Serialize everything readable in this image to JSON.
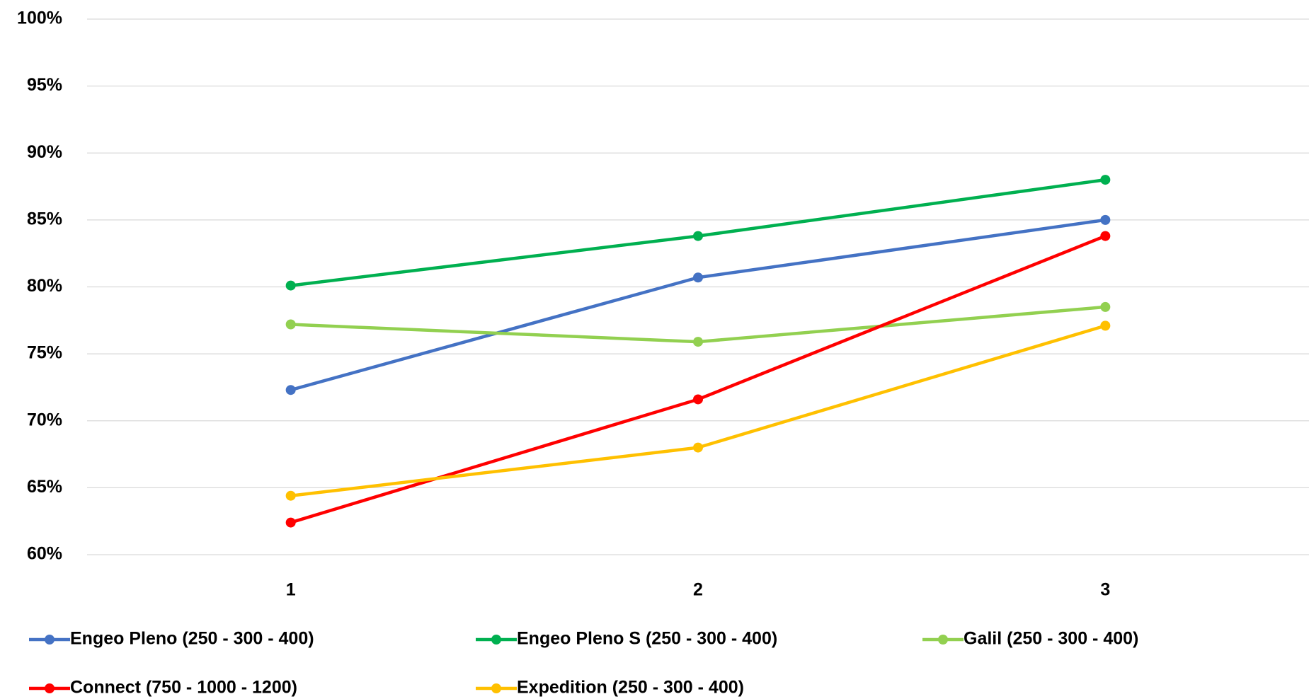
{
  "chart_data": {
    "type": "line",
    "categories": [
      "1",
      "2",
      "3"
    ],
    "series": [
      {
        "name": "Engeo Pleno (250 - 300 - 400)",
        "color": "#4472c4",
        "values": [
          72.3,
          80.7,
          85.0
        ]
      },
      {
        "name": "Engeo Pleno S (250 - 300 - 400)",
        "color": "#00b050",
        "values": [
          80.1,
          83.8,
          88.0
        ]
      },
      {
        "name": "Galil (250 - 300 - 400)",
        "color": "#92d050",
        "values": [
          77.2,
          75.9,
          78.5
        ]
      },
      {
        "name": "Connect (750 - 1000 - 1200)",
        "color": "#ff0000",
        "values": [
          62.4,
          71.6,
          83.8
        ]
      },
      {
        "name": "Expedition (250 - 300 - 400)",
        "color": "#ffc000",
        "values": [
          64.4,
          68.0,
          77.1
        ]
      }
    ],
    "ylim": [
      60,
      100
    ],
    "yticks": [
      {
        "value": 60,
        "label": "60%"
      },
      {
        "value": 65,
        "label": "65%"
      },
      {
        "value": 70,
        "label": "70%"
      },
      {
        "value": 75,
        "label": "75%"
      },
      {
        "value": 80,
        "label": "80%"
      },
      {
        "value": 85,
        "label": "85%"
      },
      {
        "value": 90,
        "label": "90%"
      },
      {
        "value": 95,
        "label": "95%"
      },
      {
        "value": 100,
        "label": "100%"
      }
    ],
    "grid": true,
    "legend": "bottom"
  }
}
